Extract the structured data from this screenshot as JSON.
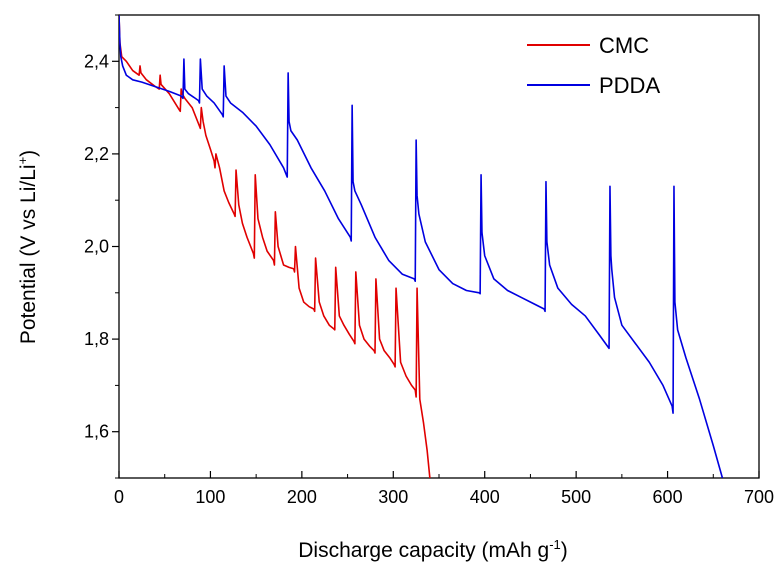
{
  "chart_data": {
    "type": "line",
    "title": "",
    "xlabel": "Discharge capacity (mAh g",
    "xlabel_sup": "-1",
    "xlabel_end": ")",
    "ylabel": "Potential (V vs Li/Li",
    "ylabel_sup": "+",
    "ylabel_end": ")",
    "xlim": [
      0,
      700
    ],
    "ylim": [
      1.5,
      2.5
    ],
    "xticks": [
      0,
      100,
      200,
      300,
      400,
      500,
      600,
      700
    ],
    "yticks": [
      1.6,
      1.8,
      2.0,
      2.2,
      2.4
    ],
    "xtick_labels": [
      "0",
      "100",
      "200",
      "300",
      "400",
      "500",
      "600",
      "700"
    ],
    "ytick_labels": [
      "1,6",
      "1,8",
      "2,0",
      "2,2",
      "2,4"
    ],
    "grid": false,
    "legend_position": "top-right",
    "series": [
      {
        "name": "CMC",
        "color": "#e00000",
        "x": [
          0,
          1,
          3,
          8,
          15,
          22,
          23,
          24,
          30,
          40,
          44,
          45,
          46,
          55,
          66,
          67,
          68,
          69,
          72,
          80,
          88,
          89,
          90,
          92,
          95,
          100,
          104,
          105,
          106,
          110,
          115,
          120,
          126,
          127,
          128,
          131,
          135,
          140,
          147,
          148,
          149,
          152,
          157,
          162,
          169,
          170,
          171,
          174,
          180,
          186,
          191,
          192,
          193,
          197,
          202,
          208,
          213,
          214,
          215,
          219,
          224,
          230,
          235,
          236,
          237,
          241,
          246,
          252,
          257,
          258,
          259,
          263,
          268,
          274,
          279,
          280,
          281,
          285,
          290,
          296,
          301,
          302,
          303,
          308,
          314,
          320,
          324,
          325,
          326,
          329,
          333,
          337,
          340
        ],
        "y": [
          2.5,
          2.44,
          2.41,
          2.4,
          2.38,
          2.37,
          2.39,
          2.375,
          2.36,
          2.345,
          2.34,
          2.37,
          2.35,
          2.33,
          2.295,
          2.292,
          2.34,
          2.33,
          2.32,
          2.3,
          2.26,
          2.255,
          2.3,
          2.27,
          2.24,
          2.21,
          2.185,
          2.17,
          2.2,
          2.17,
          2.12,
          2.095,
          2.07,
          2.065,
          2.165,
          2.09,
          2.05,
          2.02,
          1.985,
          1.975,
          2.155,
          2.06,
          2.02,
          1.99,
          1.97,
          1.96,
          2.075,
          2.0,
          1.96,
          1.955,
          1.952,
          1.945,
          2.0,
          1.91,
          1.88,
          1.87,
          1.865,
          1.86,
          1.975,
          1.88,
          1.85,
          1.83,
          1.822,
          1.82,
          1.955,
          1.85,
          1.83,
          1.81,
          1.795,
          1.79,
          1.945,
          1.83,
          1.8,
          1.785,
          1.775,
          1.77,
          1.93,
          1.8,
          1.775,
          1.76,
          1.745,
          1.74,
          1.91,
          1.75,
          1.72,
          1.7,
          1.69,
          1.675,
          1.91,
          1.67,
          1.62,
          1.56,
          1.5
        ]
      },
      {
        "name": "PDDA",
        "color": "#0000e0",
        "x": [
          0,
          1,
          2,
          4,
          8,
          15,
          25,
          40,
          55,
          68,
          70,
          71,
          72,
          76,
          82,
          87,
          88,
          89,
          91,
          96,
          104,
          113,
          114,
          115,
          117,
          122,
          135,
          150,
          165,
          180,
          184,
          185,
          186,
          188,
          195,
          210,
          225,
          240,
          253,
          254,
          255,
          256,
          258,
          265,
          280,
          295,
          310,
          323,
          324,
          325,
          326,
          328,
          335,
          350,
          365,
          380,
          394,
          395,
          396,
          397,
          400,
          410,
          425,
          440,
          455,
          465,
          466,
          467,
          468,
          471,
          480,
          495,
          510,
          525,
          536,
          537,
          538,
          539,
          542,
          550,
          565,
          580,
          595,
          605,
          606,
          607,
          608,
          611,
          620,
          635,
          650,
          660
        ],
        "y": [
          2.5,
          2.44,
          2.41,
          2.39,
          2.37,
          2.36,
          2.355,
          2.345,
          2.335,
          2.325,
          2.32,
          2.405,
          2.34,
          2.33,
          2.322,
          2.315,
          2.31,
          2.405,
          2.34,
          2.325,
          2.31,
          2.285,
          2.28,
          2.39,
          2.325,
          2.31,
          2.29,
          2.26,
          2.22,
          2.17,
          2.15,
          2.375,
          2.27,
          2.25,
          2.23,
          2.17,
          2.12,
          2.06,
          2.02,
          2.012,
          2.305,
          2.14,
          2.12,
          2.09,
          2.02,
          1.97,
          1.94,
          1.93,
          1.925,
          2.23,
          2.11,
          2.07,
          2.01,
          1.95,
          1.92,
          1.905,
          1.9,
          1.898,
          2.155,
          2.03,
          1.98,
          1.93,
          1.905,
          1.89,
          1.875,
          1.865,
          1.86,
          2.14,
          2.01,
          1.96,
          1.91,
          1.875,
          1.85,
          1.81,
          1.78,
          2.13,
          1.98,
          1.95,
          1.89,
          1.83,
          1.79,
          1.75,
          1.7,
          1.655,
          1.64,
          2.13,
          1.88,
          1.82,
          1.76,
          1.67,
          1.57,
          1.5
        ]
      }
    ]
  }
}
